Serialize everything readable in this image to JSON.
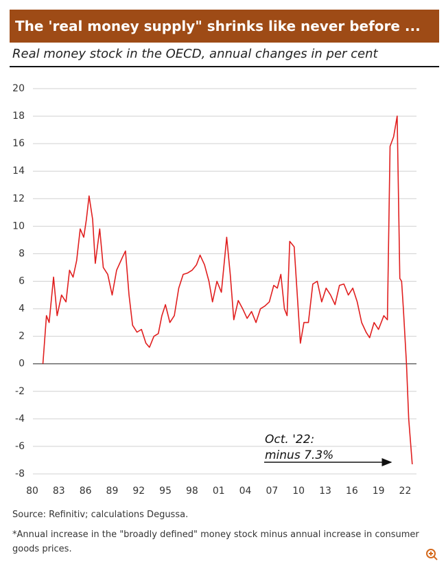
{
  "chart_data": {
    "type": "line",
    "title": "The 'real money supply\" shrinks like never before ...",
    "subtitle": "Real money stock in the OECD, annual changes in per cent",
    "x": [
      1981.2,
      1981.6,
      1981.9,
      1982.4,
      1982.8,
      1983.3,
      1983.8,
      1984.2,
      1984.6,
      1985.0,
      1985.4,
      1985.8,
      1986.1,
      1986.4,
      1986.8,
      1987.1,
      1987.6,
      1988.0,
      1988.5,
      1989.0,
      1989.5,
      1990.2,
      1990.5,
      1990.9,
      1991.3,
      1991.8,
      1992.3,
      1992.8,
      1993.2,
      1993.7,
      1994.2,
      1994.6,
      1995.0,
      1995.5,
      1996.0,
      1996.5,
      1997.0,
      1997.5,
      1998.0,
      1998.5,
      1998.9,
      1999.4,
      1999.9,
      2000.3,
      2000.8,
      2001.3,
      2001.9,
      2002.3,
      2002.7,
      2003.2,
      2003.7,
      2004.2,
      2004.7,
      2005.2,
      2005.7,
      2006.2,
      2006.7,
      2007.2,
      2007.6,
      2008.0,
      2008.4,
      2008.7,
      2009.0,
      2009.5,
      2010.2,
      2010.6,
      2011.1,
      2011.6,
      2012.1,
      2012.6,
      2013.1,
      2013.6,
      2014.1,
      2014.6,
      2015.1,
      2015.6,
      2016.1,
      2016.6,
      2017.1,
      2017.6,
      2018.0,
      2018.5,
      2019.0,
      2019.6,
      2020.0,
      2020.3,
      2020.7,
      2021.1,
      2021.4,
      2021.6,
      2021.8,
      2022.15,
      2022.4,
      2022.8
    ],
    "series": [
      {
        "name": "Real money stock OECD",
        "color": "#e01e1e",
        "values": [
          0,
          3.5,
          3,
          6.3,
          3.5,
          5,
          4.5,
          6.8,
          6.3,
          7.5,
          9.8,
          9.2,
          10.5,
          12.2,
          10.5,
          7.3,
          9.8,
          7,
          6.5,
          5,
          6.8,
          7.8,
          8.2,
          5,
          2.8,
          2.3,
          2.5,
          1.5,
          1.2,
          2,
          2.2,
          3.5,
          4.3,
          3,
          3.5,
          5.5,
          6.5,
          6.6,
          6.8,
          7.2,
          7.9,
          7.2,
          6,
          4.5,
          6,
          5.2,
          9.2,
          6.5,
          3.2,
          4.6,
          4,
          3.3,
          3.8,
          3,
          4,
          4.2,
          4.5,
          5.7,
          5.5,
          6.5,
          4,
          3.5,
          8.9,
          8.5,
          1.5,
          3,
          3,
          5.8,
          6,
          4.5,
          5.5,
          5,
          4.3,
          5.7,
          5.8,
          5,
          5.5,
          4.5,
          3,
          2.3,
          1.9,
          3,
          2.5,
          3.5,
          3.2,
          15.8,
          16.5,
          18,
          6.2,
          6,
          4,
          0,
          -4,
          -7.3
        ]
      }
    ],
    "xlim": [
      1980,
      2023.2
    ],
    "xticks": [
      {
        "value": 1980,
        "label": "80"
      },
      {
        "value": 1983,
        "label": "83"
      },
      {
        "value": 1986,
        "label": "86"
      },
      {
        "value": 1989,
        "label": "89"
      },
      {
        "value": 1992,
        "label": "92"
      },
      {
        "value": 1995,
        "label": "95"
      },
      {
        "value": 1998,
        "label": "98"
      },
      {
        "value": 2001,
        "label": "01"
      },
      {
        "value": 2004,
        "label": "04"
      },
      {
        "value": 2007,
        "label": "07"
      },
      {
        "value": 2010,
        "label": "10"
      },
      {
        "value": 2013,
        "label": "13"
      },
      {
        "value": 2016,
        "label": "16"
      },
      {
        "value": 2019,
        "label": "19"
      },
      {
        "value": 2022,
        "label": "22"
      }
    ],
    "ylim": [
      -8,
      20
    ],
    "yticks": [
      -8,
      -6,
      -4,
      -2,
      0,
      2,
      4,
      6,
      8,
      10,
      12,
      14,
      16,
      18,
      20
    ],
    "grid": true,
    "annotation": [
      "Oct. '22:",
      "minus 7.3%"
    ],
    "source": "Source: Refinitiv; calculations Degussa.",
    "footnote": "*Annual increase in the \"broadly defined\" money stock minus annual increase in consumer goods prices."
  }
}
